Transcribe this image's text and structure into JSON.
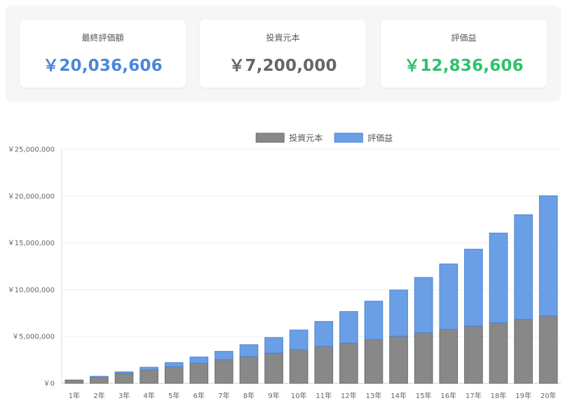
{
  "summary": {
    "cards": [
      {
        "label": "最終評価額",
        "value": "￥20,036,606",
        "color": "#4a86d8"
      },
      {
        "label": "投資元本",
        "value": "￥7,200,000",
        "color": "#666666"
      },
      {
        "label": "評価益",
        "value": "￥12,836,606",
        "color": "#2ec26b"
      }
    ]
  },
  "chart_data": {
    "type": "bar",
    "stacked": true,
    "categories": [
      "1年",
      "2年",
      "3年",
      "4年",
      "5年",
      "6年",
      "7年",
      "8年",
      "9年",
      "10年",
      "11年",
      "12年",
      "13年",
      "14年",
      "15年",
      "16年",
      "17年",
      "18年",
      "19年",
      "20年"
    ],
    "series": [
      {
        "name": "投資元本",
        "color": "#888888",
        "border": "#6e6e6e",
        "values": [
          360000,
          720000,
          1080000,
          1440000,
          1800000,
          2160000,
          2520000,
          2880000,
          3240000,
          3600000,
          3960000,
          4320000,
          4680000,
          5040000,
          5400000,
          5760000,
          6120000,
          6480000,
          6840000,
          7200000
        ]
      },
      {
        "name": "評価益",
        "color": "#6a9fe6",
        "border": "#4d86d8",
        "values": [
          0,
          30000,
          150000,
          280000,
          420000,
          660000,
          900000,
          1250000,
          1650000,
          2100000,
          2650000,
          3350000,
          4100000,
          4930000,
          5910000,
          6990000,
          8210000,
          9570000,
          11170000,
          12836606
        ]
      }
    ],
    "y_ticks": [
      "￥0",
      "￥5,000,000",
      "￥10,000,000",
      "￥15,000,000",
      "￥20,000,000",
      "￥25,000,000"
    ],
    "ylim": [
      0,
      25000000
    ],
    "legend_position": "top",
    "grid": true
  }
}
